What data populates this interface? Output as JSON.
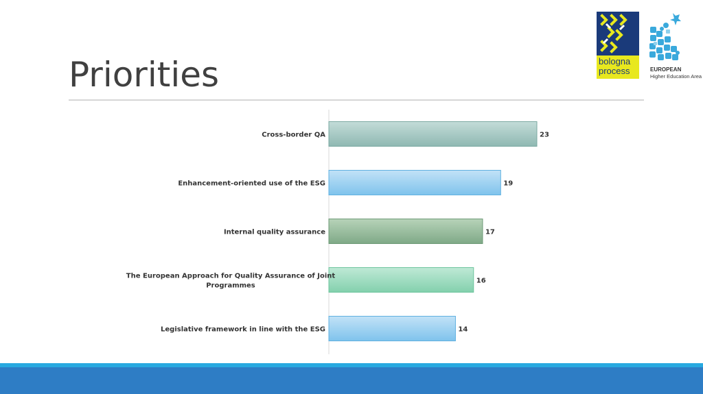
{
  "slide": {
    "title": "Priorities"
  },
  "logos": {
    "bologna": {
      "line1": "bologna",
      "line2": "process"
    },
    "ehea": {
      "line1": "EUROPEAN",
      "line2": "Higher Education Area"
    }
  },
  "colors": {
    "title": "#404040",
    "footer_bar": "#2e7dc5",
    "footer_accent": "#28a9e0"
  },
  "chart_data": {
    "type": "bar",
    "orientation": "horizontal",
    "categories": [
      "Cross-border QA",
      "Enhancement-oriented use of the ESG",
      "Internal quality assurance",
      "The European Approach for Quality Assurance of Joint Programmes",
      "Legislative framework in line with the ESG"
    ],
    "category_lines": [
      [
        "Cross-border QA"
      ],
      [
        "Enhancement-oriented use of the ESG"
      ],
      [
        "Internal quality assurance"
      ],
      [
        "The European Approach for Quality Assurance of Joint",
        "Programmes"
      ],
      [
        "Legislative framework in line with the ESG"
      ]
    ],
    "values": [
      23,
      19,
      17,
      16,
      14
    ],
    "value_labels": [
      "23",
      "19",
      "17",
      "16",
      "14"
    ],
    "bar_colors": [
      [
        "#c3dcd8",
        "#8fb8b2",
        "#7aa8a1"
      ],
      [
        "#c2e2f7",
        "#7fc3ec",
        "#5fb0e0"
      ],
      [
        "#b7d3b9",
        "#7fa987",
        "#6d9a76"
      ],
      [
        "#bfe9d6",
        "#83d0ad",
        "#6cc49c"
      ],
      [
        "#c2e2f7",
        "#7fc3ec",
        "#5fb0e0"
      ]
    ],
    "xlim": [
      0,
      25
    ],
    "title": "",
    "xlabel": "",
    "ylabel": "",
    "grid": false,
    "legend": false
  }
}
